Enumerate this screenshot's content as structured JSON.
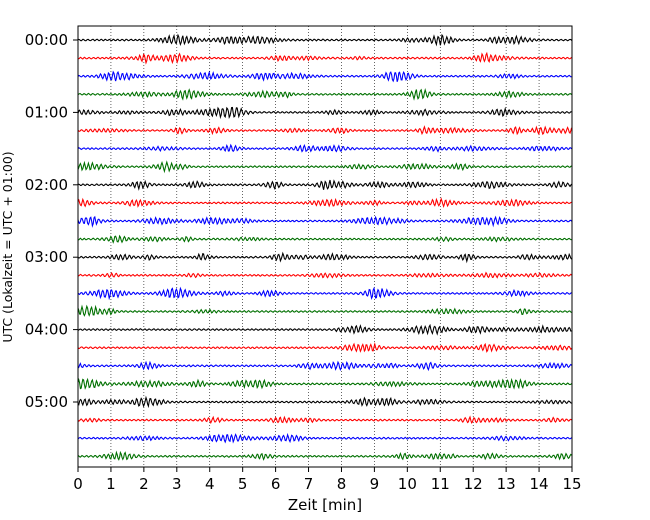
{
  "chart_data": {
    "type": "line",
    "title": "",
    "xlabel": "Zeit  [min]",
    "ylabel": "UTC (Lokalzeit = UTC + 01:00)",
    "xlim": [
      0,
      15
    ],
    "x_ticks": [
      "0",
      "1",
      "2",
      "3",
      "4",
      "5",
      "6",
      "7",
      "8",
      "9",
      "10",
      "11",
      "12",
      "13",
      "14",
      "15"
    ],
    "y_ticks": [
      "00:00",
      "01:00",
      "02:00",
      "03:00",
      "04:00",
      "05:00"
    ],
    "grid": "vertical dotted lines at each minute",
    "trace_count": 24,
    "trace_interval_min": 15,
    "trace_colors": [
      "#000000",
      "#ff0000",
      "#0000ff",
      "#007000"
    ]
  }
}
